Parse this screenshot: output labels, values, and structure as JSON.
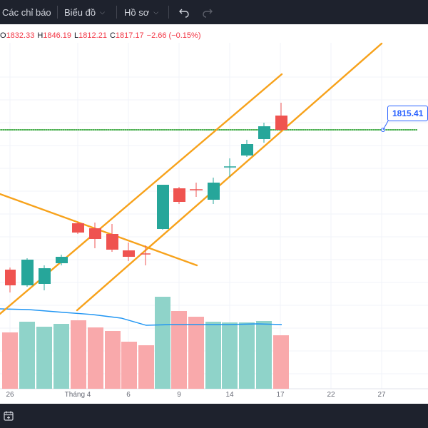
{
  "toolbar": {
    "indicators_label": "Các chỉ báo",
    "chart_label": "Biểu đồ",
    "profile_label": "Hồ sơ"
  },
  "ohlc": {
    "o_label": "O",
    "o_value": "1832.33",
    "h_label": "H",
    "h_value": "1846.19",
    "l_label": "L",
    "l_value": "1812.21",
    "c_label": "C",
    "c_value": "1817.17",
    "change": "−2.66 (−0.15%)"
  },
  "price_label": "1815.41",
  "x_axis": [
    "26",
    "Tháng 4",
    "6",
    "9",
    "14",
    "17",
    "22",
    "27"
  ],
  "colors": {
    "up": "#26a69a",
    "down": "#ef5350",
    "trendline": "#f7a21b",
    "horizontal_line": "#4caf50",
    "volume_ma": "#2196f3",
    "volume_up": "#8fd3c9",
    "volume_down": "#f9a9ab",
    "toolbar_bg": "#1e222d"
  },
  "icons": {
    "undo": "undo-icon",
    "redo": "redo-icon",
    "calendar": "calendar-icon"
  }
}
